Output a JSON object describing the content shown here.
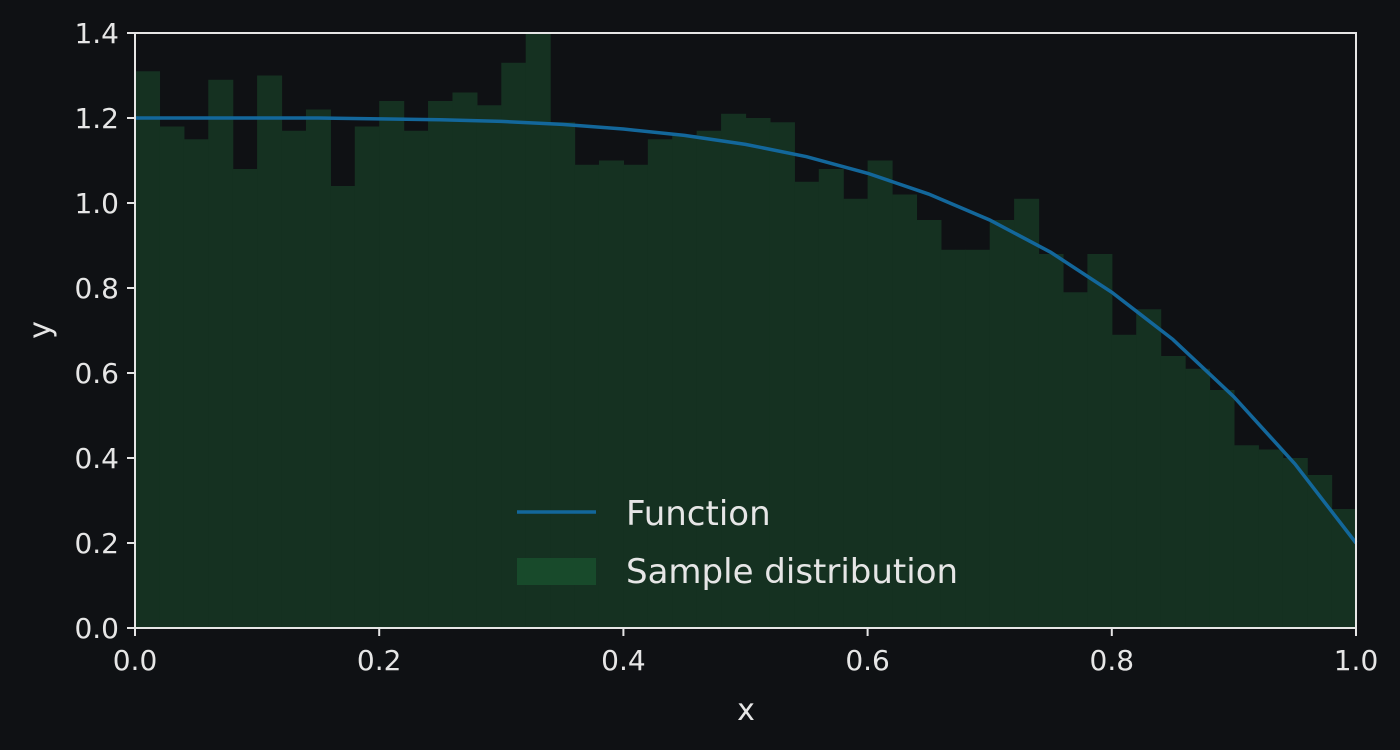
{
  "colors": {
    "background": "#0f1114",
    "frame": "#e6e6e6",
    "line": "#13679b",
    "hist": "#153121",
    "legend_patch": "#184a2b"
  },
  "chart_data": {
    "type": "line",
    "xlabel": "x",
    "ylabel": "y",
    "xlim": [
      0.0,
      1.0
    ],
    "ylim": [
      0.0,
      1.4
    ],
    "x_ticks": [
      "0.0",
      "0.2",
      "0.4",
      "0.6",
      "0.8",
      "1.0"
    ],
    "x_tick_values": [
      0.0,
      0.2,
      0.4,
      0.6,
      0.8,
      1.0
    ],
    "y_ticks": [
      "0.0",
      "0.2",
      "0.4",
      "0.6",
      "0.8",
      "1.0",
      "1.2",
      "1.4"
    ],
    "y_tick_values": [
      0.0,
      0.2,
      0.4,
      0.6,
      0.8,
      1.0,
      1.2,
      1.4
    ],
    "grid": false,
    "legend_placement": "lower-center",
    "series": [
      {
        "name": "Function",
        "type": "line",
        "x": [
          0.0,
          0.05,
          0.1,
          0.15,
          0.2,
          0.25,
          0.3,
          0.35,
          0.4,
          0.45,
          0.5,
          0.55,
          0.6,
          0.65,
          0.7,
          0.75,
          0.8,
          0.85,
          0.9,
          0.95,
          1.0
        ],
        "y": [
          1.2,
          1.2,
          1.2,
          1.2,
          1.198,
          1.196,
          1.192,
          1.185,
          1.174,
          1.159,
          1.138,
          1.109,
          1.07,
          1.021,
          0.96,
          0.884,
          0.79,
          0.679,
          0.544,
          0.386,
          0.2
        ]
      },
      {
        "name": "Sample distribution",
        "type": "histogram",
        "bin_start": 0.0,
        "bin_width": 0.02,
        "values": [
          1.31,
          1.18,
          1.15,
          1.29,
          1.08,
          1.3,
          1.17,
          1.22,
          1.04,
          1.18,
          1.24,
          1.17,
          1.24,
          1.26,
          1.23,
          1.33,
          1.4,
          1.19,
          1.09,
          1.1,
          1.09,
          1.15,
          1.16,
          1.17,
          1.21,
          1.2,
          1.19,
          1.05,
          1.08,
          1.01,
          1.1,
          1.02,
          0.96,
          0.89,
          0.89,
          0.96,
          1.01,
          0.88,
          0.79,
          0.88,
          0.69,
          0.75,
          0.64,
          0.61,
          0.56,
          0.43,
          0.42,
          0.4,
          0.36,
          0.28
        ]
      }
    ]
  }
}
